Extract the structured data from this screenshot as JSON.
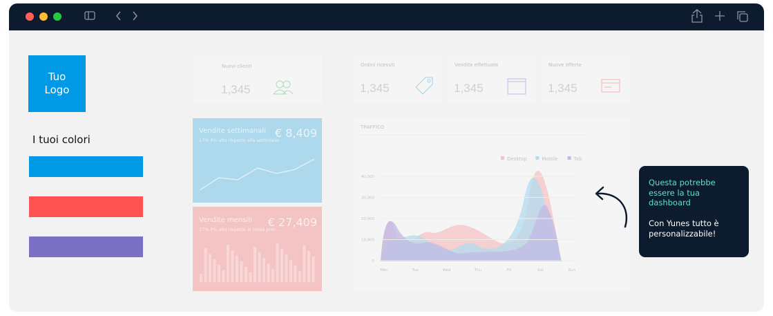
{
  "sidebar": {
    "logo": "Tuo Logo",
    "colors_title": "I tuoi colori",
    "colors": [
      "#0099e5",
      "#ff5252",
      "#7a70c4"
    ]
  },
  "stat_cards": [
    {
      "title": "Nuovi clienti",
      "value": "1,345"
    },
    {
      "title": "Ordini ricevuti",
      "value": "1,345"
    },
    {
      "title": "Vendite effettuate",
      "value": "1,345"
    },
    {
      "title": "Nuove offerte",
      "value": "1,345"
    }
  ],
  "panels": [
    {
      "title": "Vendite settimanali",
      "amount": "€ 8,409",
      "note": "17% Più alto rispetto alla settimana"
    },
    {
      "title": "Vendite mensili",
      "amount": "€ 27,409",
      "note": "17% Più alto rispetto al mese prec..."
    }
  ],
  "traffic": {
    "title": "TRAFFICO",
    "legend": [
      {
        "name": "Desktop",
        "color": "#f7b9bd"
      },
      {
        "name": "Mobile",
        "color": "#a9d8ef"
      },
      {
        "name": "Tab",
        "color": "#b9b3e3"
      }
    ],
    "yticks": [
      "40,000",
      "30,000",
      "20,000",
      "10,000",
      "0"
    ],
    "days": [
      "Mon",
      "Tue",
      "Wed",
      "Thu",
      "Fri",
      "Sat",
      "Sun"
    ]
  },
  "callout": {
    "headline": "Questa potrebbe essere la tua dashboard",
    "body": "Con Yunes tutto è personalizzabile!"
  }
}
